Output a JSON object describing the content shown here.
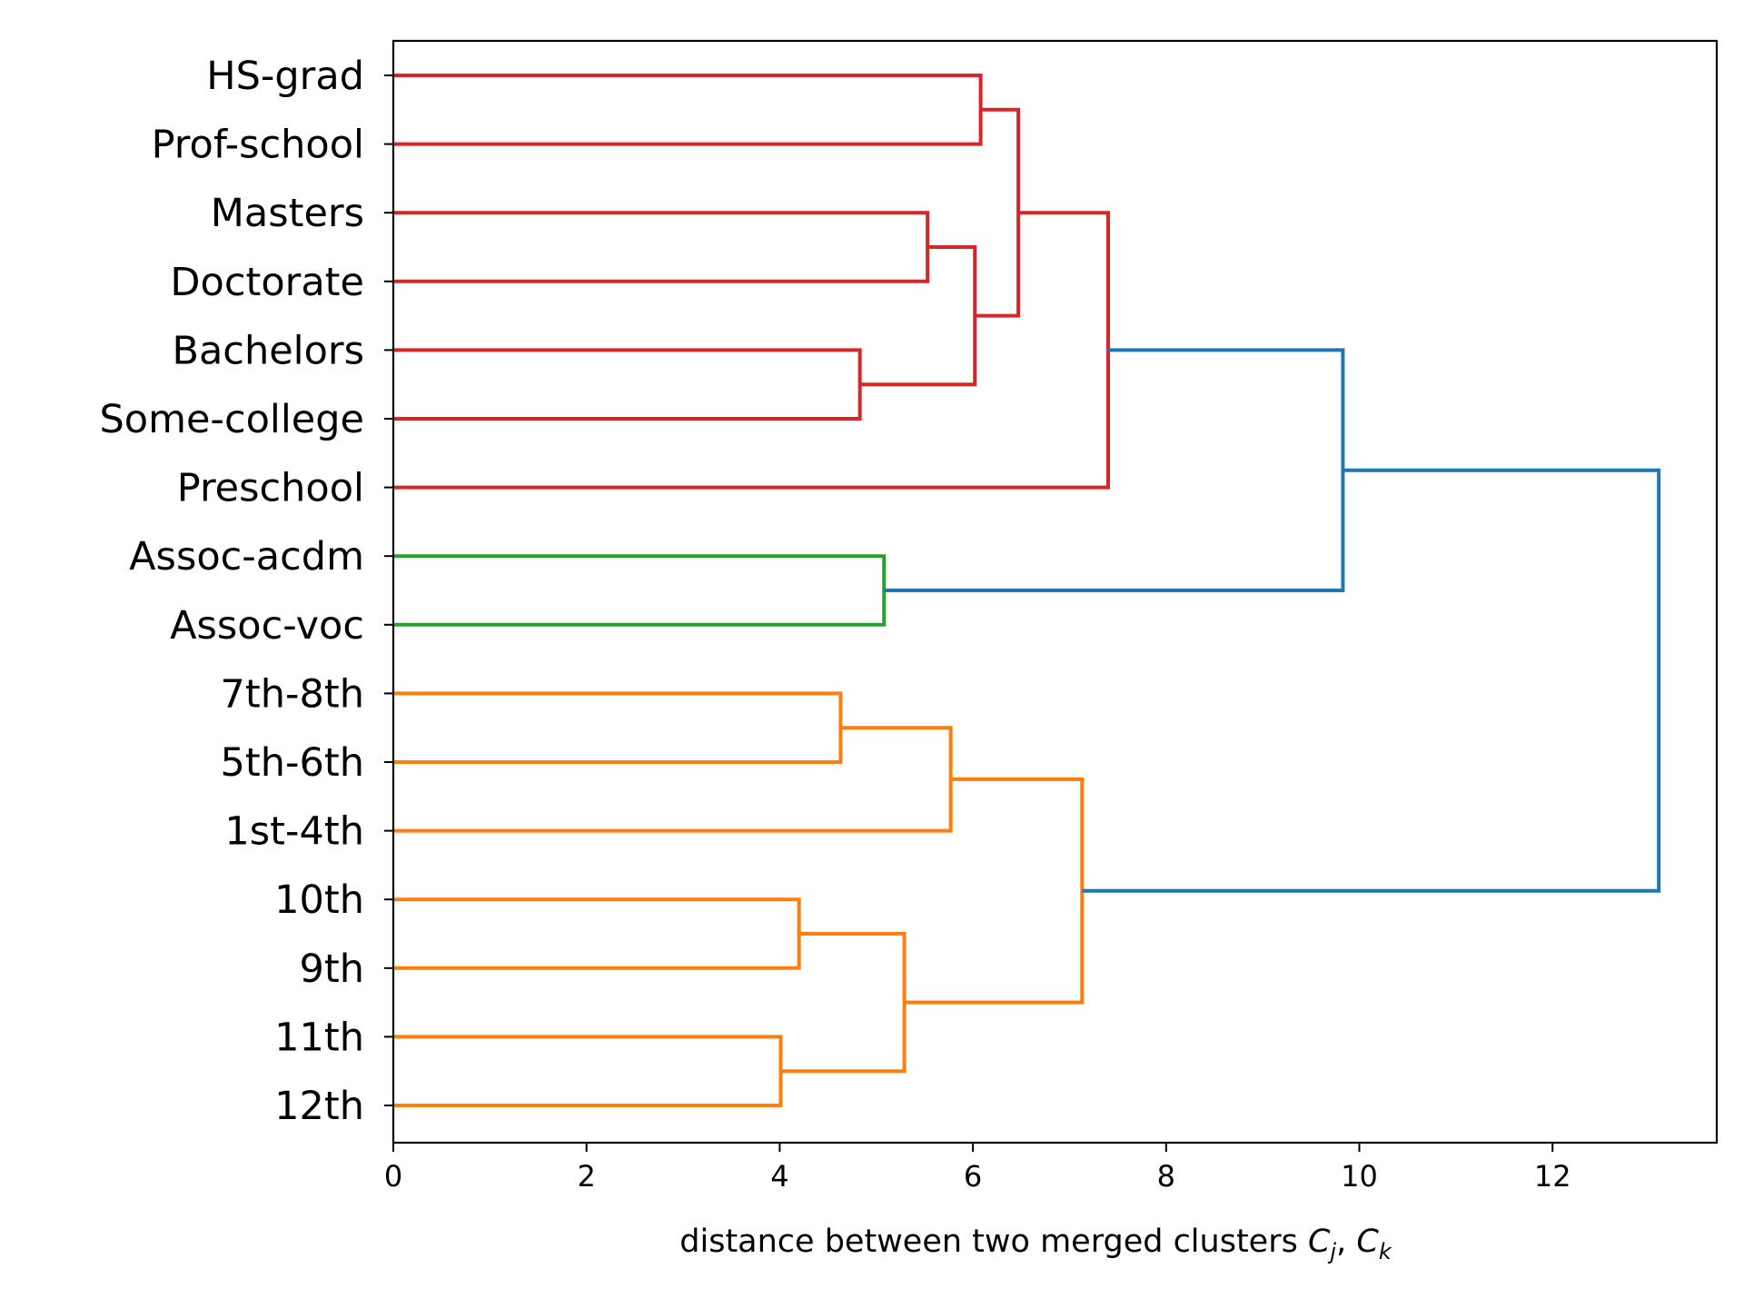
{
  "chart_data": {
    "type": "dendrogram",
    "orientation": "left",
    "xlabel_parts": [
      "distance between two merged clusters ",
      "C",
      "j",
      ", ",
      "C",
      "k"
    ],
    "xlim": [
      0,
      13.7
    ],
    "xticks": [
      0,
      2,
      4,
      6,
      8,
      10,
      12
    ],
    "xtick_labels": [
      "0",
      "2",
      "4",
      "6",
      "8",
      "10",
      "12"
    ],
    "grid": false,
    "leaves": [
      "HS-grad",
      "Prof-school",
      "Masters",
      "Doctorate",
      "Bachelors",
      "Some-college",
      "Preschool",
      "Assoc-acdm",
      "Assoc-voc",
      "7th-8th",
      "5th-6th",
      "1st-4th",
      "10th",
      "9th",
      "11th",
      "12th"
    ],
    "colors": {
      "red": "#d62728",
      "green": "#2ca02c",
      "orange": "#ff7f0e",
      "blue": "#1f77b4"
    },
    "merges": [
      {
        "id": "c1",
        "a": "HS-grad",
        "b": "Prof-school",
        "distance": 6.08,
        "color": "red"
      },
      {
        "id": "c2",
        "a": "Masters",
        "b": "Doctorate",
        "distance": 5.53,
        "color": "red"
      },
      {
        "id": "c3",
        "a": "Bachelors",
        "b": "Some-college",
        "distance": 4.83,
        "color": "red"
      },
      {
        "id": "c4",
        "a": "c2",
        "b": "c3",
        "distance": 6.02,
        "color": "red"
      },
      {
        "id": "c5",
        "a": "c1",
        "b": "c4",
        "distance": 6.47,
        "color": "red"
      },
      {
        "id": "c6",
        "a": "c5",
        "b": "Preschool",
        "distance": 7.4,
        "color": "red"
      },
      {
        "id": "c7",
        "a": "Assoc-acdm",
        "b": "Assoc-voc",
        "distance": 5.08,
        "color": "green"
      },
      {
        "id": "c8",
        "a": "c6",
        "b": "c7",
        "distance": 9.83,
        "color": "blue"
      },
      {
        "id": "c9",
        "a": "7th-8th",
        "b": "5th-6th",
        "distance": 4.63,
        "color": "orange"
      },
      {
        "id": "c10",
        "a": "c9",
        "b": "1st-4th",
        "distance": 5.77,
        "color": "orange"
      },
      {
        "id": "c11",
        "a": "10th",
        "b": "9th",
        "distance": 4.2,
        "color": "orange"
      },
      {
        "id": "c12",
        "a": "11th",
        "b": "12th",
        "distance": 4.01,
        "color": "orange"
      },
      {
        "id": "c13",
        "a": "c11",
        "b": "c12",
        "distance": 5.29,
        "color": "orange"
      },
      {
        "id": "c14",
        "a": "c10",
        "b": "c13",
        "distance": 7.13,
        "color": "orange"
      },
      {
        "id": "c15",
        "a": "c8",
        "b": "c14",
        "distance": 13.1,
        "color": "blue"
      }
    ]
  }
}
